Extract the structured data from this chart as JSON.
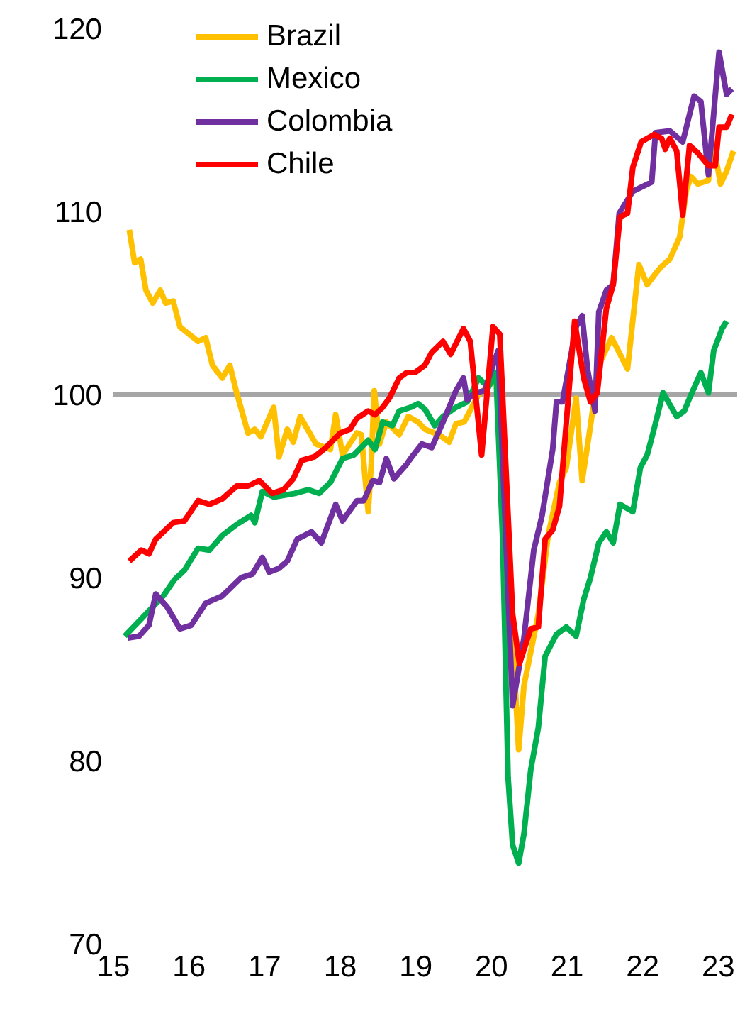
{
  "chart_data": {
    "type": "line",
    "xlim": [
      15,
      23.25
    ],
    "xticks": [
      15,
      16,
      17,
      18,
      19,
      20,
      21,
      22,
      23
    ],
    "ylim": [
      70,
      120
    ],
    "yticks": [
      70,
      80,
      90,
      100,
      110,
      120
    ],
    "grid": false,
    "legend": "top left",
    "marker": "none",
    "line_style": "solid",
    "ref_lines": [
      {
        "axis": "y",
        "value": 100,
        "label": null,
        "color": "#a6a6a6"
      }
    ],
    "series": [
      {
        "name": "Brazil",
        "color": "#ffc000",
        "x": [
          15.21,
          15.28,
          15.36,
          15.43,
          15.52,
          15.62,
          15.69,
          15.79,
          15.88,
          16.12,
          16.22,
          16.31,
          16.44,
          16.54,
          16.63,
          16.78,
          16.87,
          16.95,
          17.12,
          17.19,
          17.3,
          17.38,
          17.47,
          17.68,
          17.87,
          17.94,
          18.03,
          18.22,
          18.28,
          18.33,
          18.37,
          18.41,
          18.45,
          18.52,
          18.61,
          18.78,
          18.9,
          19.03,
          19.12,
          19.31,
          19.44,
          19.53,
          19.64,
          19.74,
          19.83,
          20.0,
          20.09,
          20.36,
          20.43,
          20.62,
          20.75,
          20.9,
          20.99,
          21.12,
          21.2,
          21.31,
          21.42,
          21.59,
          21.8,
          21.95,
          22.06,
          22.17,
          22.25,
          22.36,
          22.49,
          22.58,
          22.64,
          22.73,
          22.87,
          22.92,
          23.0,
          23.03,
          23.11,
          23.2
        ],
        "values": [
          109.0,
          107.2,
          107.4,
          105.7,
          105.0,
          105.7,
          105.0,
          105.1,
          103.7,
          102.9,
          103.1,
          101.6,
          100.9,
          101.6,
          100.1,
          97.9,
          98.1,
          97.7,
          99.3,
          96.6,
          98.1,
          97.4,
          98.8,
          97.3,
          97.0,
          98.9,
          96.7,
          97.9,
          97.8,
          95.4,
          93.6,
          96.2,
          100.2,
          97.3,
          98.5,
          97.8,
          98.8,
          98.5,
          98.1,
          97.8,
          97.4,
          98.4,
          98.5,
          99.3,
          100.0,
          100.6,
          100.9,
          80.6,
          84.1,
          88.0,
          92.3,
          95.2,
          96.0,
          99.8,
          95.3,
          98.3,
          101.6,
          103.1,
          101.4,
          107.1,
          106.0,
          106.6,
          107.0,
          107.4,
          108.6,
          111.2,
          111.9,
          111.5,
          111.7,
          113.8,
          112.2,
          111.5,
          112.2,
          113.3
        ]
      },
      {
        "name": "Mexico",
        "color": "#00b050",
        "x": [
          15.15,
          15.66,
          15.81,
          15.94,
          16.12,
          16.27,
          16.44,
          16.63,
          16.82,
          16.87,
          16.97,
          17.12,
          17.4,
          17.58,
          17.72,
          17.87,
          18.03,
          18.18,
          18.37,
          18.46,
          18.56,
          18.69,
          18.78,
          18.93,
          19.03,
          19.12,
          19.25,
          19.36,
          19.53,
          19.68,
          19.83,
          19.96,
          20.06,
          20.15,
          20.22,
          20.28,
          20.36,
          20.43,
          20.52,
          20.62,
          20.71,
          20.86,
          20.99,
          21.12,
          21.22,
          21.31,
          21.42,
          21.52,
          21.61,
          21.7,
          21.87,
          21.97,
          22.06,
          22.15,
          22.27,
          22.45,
          22.55,
          22.62,
          22.77,
          22.87,
          22.94,
          23.05,
          23.11
        ],
        "values": [
          86.8,
          89.0,
          89.9,
          90.4,
          91.6,
          91.5,
          92.3,
          92.9,
          93.4,
          93.0,
          94.7,
          94.4,
          94.6,
          94.8,
          94.6,
          95.2,
          96.5,
          96.7,
          97.5,
          97.0,
          98.5,
          98.3,
          99.1,
          99.3,
          99.5,
          99.2,
          98.3,
          98.8,
          99.3,
          99.6,
          100.9,
          100.4,
          101.2,
          91.9,
          79.1,
          75.4,
          74.4,
          76.0,
          79.5,
          81.8,
          85.7,
          86.9,
          87.3,
          86.8,
          88.8,
          90.0,
          91.9,
          92.5,
          91.9,
          94.0,
          93.6,
          96.0,
          96.7,
          98.1,
          100.1,
          98.8,
          99.1,
          99.8,
          101.2,
          100.1,
          102.4,
          103.6,
          104.0
        ]
      },
      {
        "name": "Colombia",
        "color": "#7030a0",
        "x": [
          15.19,
          15.34,
          15.47,
          15.56,
          15.71,
          15.88,
          16.03,
          16.22,
          16.44,
          16.69,
          16.84,
          16.97,
          17.06,
          17.19,
          17.3,
          17.43,
          17.62,
          17.75,
          17.94,
          18.03,
          18.22,
          18.31,
          18.43,
          18.52,
          18.61,
          18.71,
          18.88,
          18.93,
          19.08,
          19.21,
          19.36,
          19.53,
          19.63,
          19.68,
          19.78,
          19.91,
          20.02,
          20.09,
          20.28,
          20.43,
          20.56,
          20.67,
          20.81,
          20.86,
          20.94,
          21.12,
          21.2,
          21.27,
          21.37,
          21.42,
          21.52,
          21.61,
          21.69,
          21.87,
          22.12,
          22.17,
          22.36,
          22.53,
          22.68,
          22.77,
          22.87,
          23.01,
          23.11,
          23.18
        ],
        "values": [
          86.7,
          86.8,
          87.4,
          89.1,
          88.4,
          87.2,
          87.4,
          88.6,
          89.0,
          90.0,
          90.2,
          91.1,
          90.3,
          90.5,
          90.9,
          92.1,
          92.5,
          91.9,
          94.0,
          93.1,
          94.2,
          94.2,
          95.3,
          95.2,
          96.5,
          95.4,
          96.2,
          96.5,
          97.3,
          97.1,
          98.5,
          100.2,
          100.9,
          99.7,
          100.1,
          100.2,
          101.6,
          102.4,
          83.0,
          86.7,
          91.5,
          93.4,
          97.0,
          99.6,
          99.6,
          103.7,
          104.3,
          101.4,
          99.1,
          104.5,
          105.7,
          106.0,
          109.9,
          111.1,
          111.6,
          114.3,
          114.4,
          113.8,
          116.3,
          116.0,
          112.0,
          118.7,
          116.4,
          116.7
        ]
      },
      {
        "name": "Chile",
        "color": "#ff0000",
        "x": [
          15.21,
          15.37,
          15.47,
          15.56,
          15.79,
          15.94,
          16.12,
          16.27,
          16.44,
          16.63,
          16.78,
          16.93,
          17.1,
          17.25,
          17.38,
          17.49,
          17.66,
          17.81,
          18.0,
          18.13,
          18.22,
          18.37,
          18.46,
          18.56,
          18.65,
          18.78,
          18.88,
          18.99,
          19.12,
          19.21,
          19.36,
          19.46,
          19.63,
          19.72,
          19.87,
          20.02,
          20.11,
          20.28,
          20.37,
          20.52,
          20.62,
          20.71,
          20.81,
          20.9,
          21.1,
          21.22,
          21.31,
          21.4,
          21.52,
          21.61,
          21.7,
          21.8,
          21.87,
          21.98,
          22.15,
          22.25,
          22.3,
          22.36,
          22.45,
          22.53,
          22.62,
          22.73,
          22.87,
          22.96,
          23.01,
          23.11,
          23.18
        ],
        "values": [
          90.9,
          91.5,
          91.3,
          92.1,
          93.0,
          93.1,
          94.2,
          94.0,
          94.3,
          95.0,
          95.0,
          95.3,
          94.6,
          94.8,
          95.4,
          96.4,
          96.6,
          97.1,
          97.9,
          98.1,
          98.7,
          99.1,
          98.9,
          99.3,
          99.8,
          100.9,
          101.2,
          101.2,
          101.6,
          102.3,
          102.9,
          102.2,
          103.6,
          102.9,
          96.7,
          103.7,
          103.3,
          88.0,
          85.3,
          87.2,
          87.3,
          92.1,
          92.6,
          93.9,
          104.0,
          100.9,
          99.6,
          100.1,
          104.7,
          106.0,
          109.7,
          109.9,
          112.4,
          113.8,
          114.2,
          114.0,
          113.4,
          114.0,
          113.3,
          109.8,
          113.6,
          113.2,
          112.5,
          112.5,
          114.6,
          114.6,
          115.3
        ]
      }
    ]
  }
}
